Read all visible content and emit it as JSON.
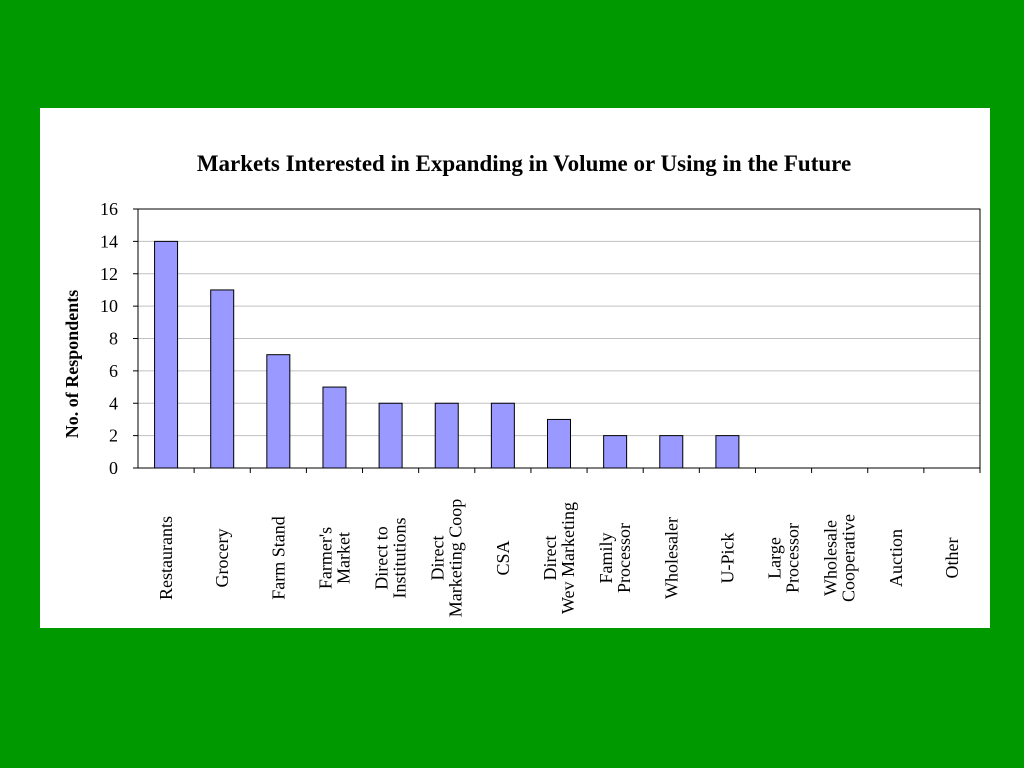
{
  "colors": {
    "background": "#009900",
    "panel": "#ffffff",
    "bar_fill": "#9999ff",
    "bar_stroke": "#000000",
    "grid": "#c0c0c0"
  },
  "chart_data": {
    "type": "bar",
    "title": "Markets Interested in Expanding in Volume or Using in the Future",
    "xlabel": "",
    "ylabel": "No. of Respondents",
    "ylim": [
      0,
      16
    ],
    "yticks": [
      "0",
      "2",
      "4",
      "6",
      "8",
      "10",
      "12",
      "14",
      "16"
    ],
    "grid": true,
    "legend": "none",
    "categories": [
      [
        "Restaurants"
      ],
      [
        "Grocery"
      ],
      [
        "Farm Stand"
      ],
      [
        "Farmer's",
        "Market"
      ],
      [
        "Direct to",
        "Institutions"
      ],
      [
        "Direct",
        "Marketing Coop"
      ],
      [
        "CSA"
      ],
      [
        "Direct",
        "Wev Marketing"
      ],
      [
        "Family",
        "Processor"
      ],
      [
        "Wholesaler"
      ],
      [
        "U-Pick"
      ],
      [
        "Large",
        "Processor"
      ],
      [
        "Wholesale",
        "Cooperative"
      ],
      [
        "Auction"
      ],
      [
        "Other"
      ]
    ],
    "values": [
      14,
      11,
      7,
      5,
      4,
      4,
      4,
      3,
      2,
      2,
      2,
      0,
      0,
      0,
      0
    ]
  }
}
